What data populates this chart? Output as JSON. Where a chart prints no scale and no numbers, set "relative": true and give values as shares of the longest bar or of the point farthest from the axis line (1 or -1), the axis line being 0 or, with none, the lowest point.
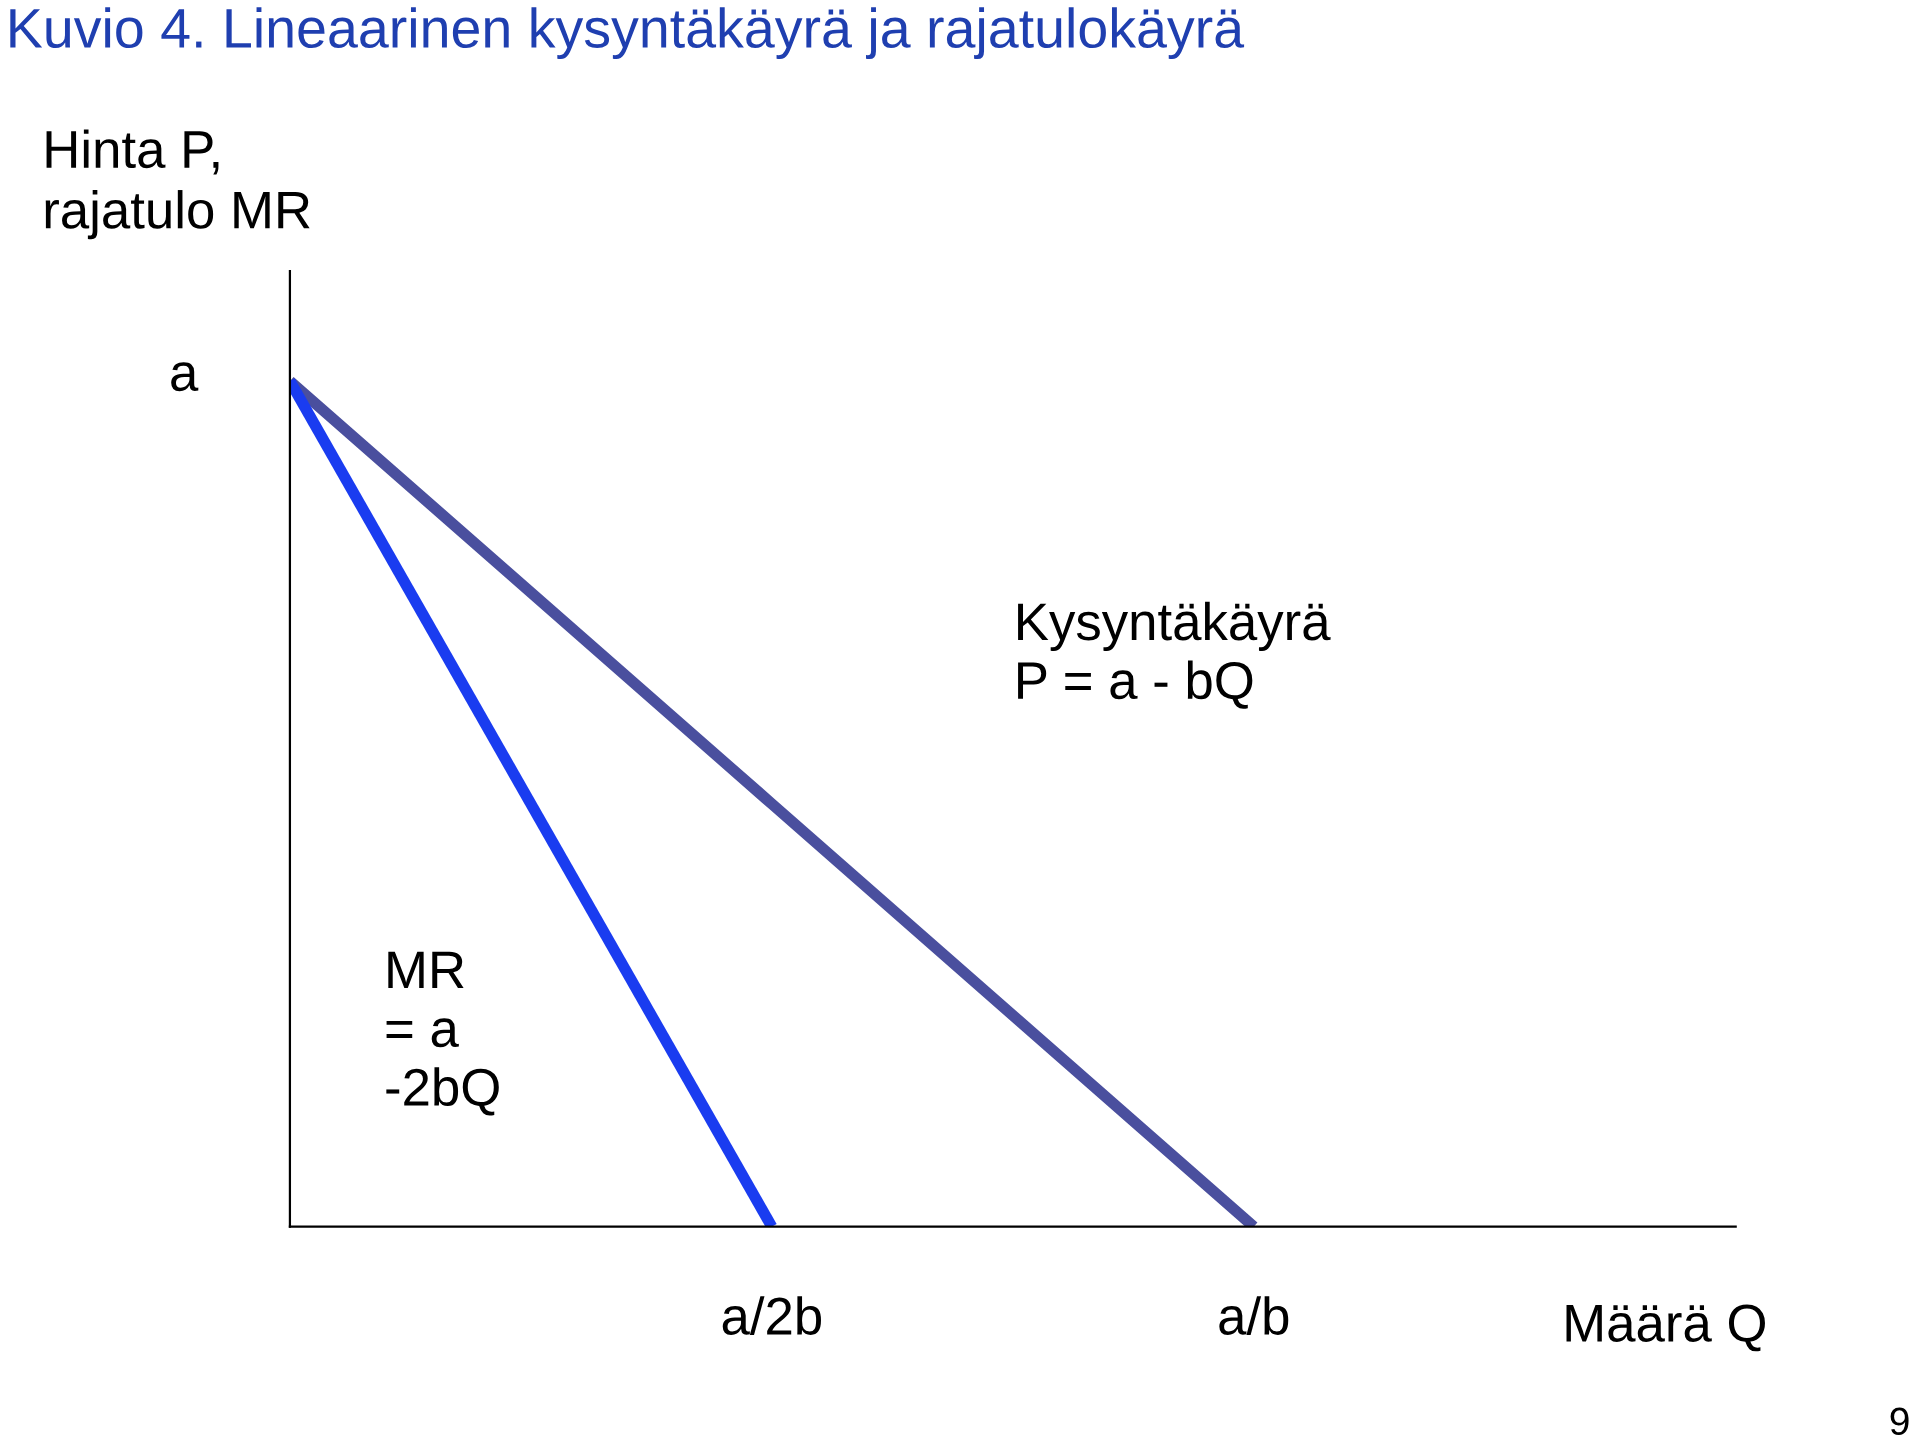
{
  "chart_data": {
    "type": "line",
    "title": "Kuvio 4. Lineaarinen kysyntäkäyrä ja rajatulokäyrä",
    "ylabel": "Hinta P,\nrajatulo MR",
    "xlabel": "Määrä Q",
    "relative": true,
    "categories": [
      null,
      "a/2b",
      "a/b",
      null
    ],
    "series": [
      {
        "color": "#4a4f9e",
        "values": [
          1,
          0.5,
          0,
          null
        ]
      },
      {
        "color": "#1a3cf0",
        "values": [
          1,
          0,
          null,
          null
        ]
      }
    ],
    "annotations": [
      "Kysyntäkäyrä\nP = a - bQ",
      "MR\n= a\n-2bQ",
      "a",
      "9"
    ],
    "grid": false,
    "legend": false,
    "marker": "none",
    "line_style": "solid"
  }
}
